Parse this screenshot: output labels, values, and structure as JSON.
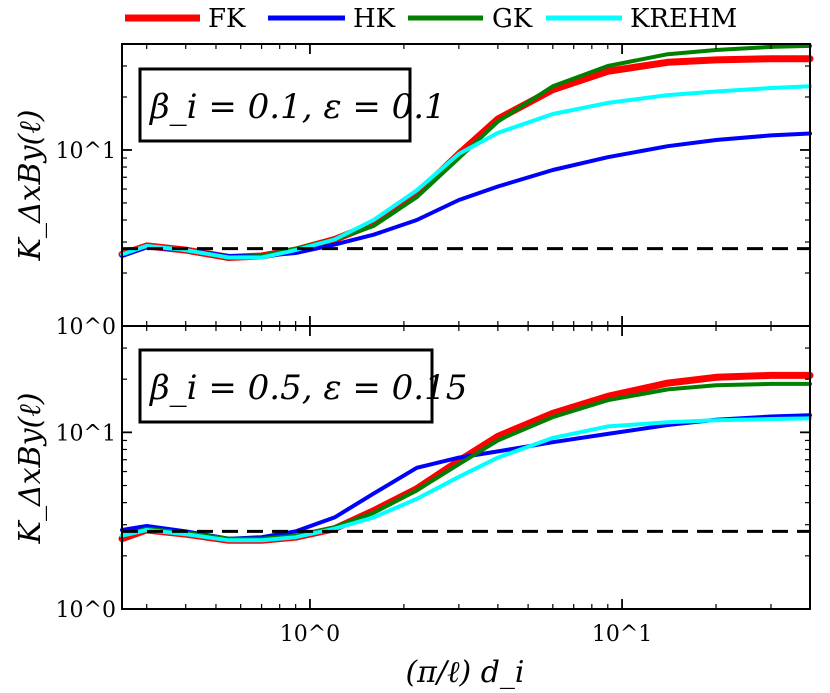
{
  "legend": [
    {
      "name": "FK",
      "color": "#ff0000"
    },
    {
      "name": "HK",
      "color": "#0000ff"
    },
    {
      "name": "GK",
      "color": "#007f00"
    },
    {
      "name": "KREHM",
      "color": "#00ffff"
    }
  ],
  "xlabel": "(π/ℓ) d_i",
  "chart_data": [
    {
      "type": "line",
      "xscale": "log",
      "yscale": "log",
      "xlim": [
        0.25,
        40
      ],
      "ylim": [
        1,
        40
      ],
      "annotation": "β_i = 0.1, ε = 0.1",
      "ylabel": "K_ΔxBy(ℓ)",
      "reference_line": {
        "y": 2.75,
        "style": "dashed"
      },
      "x_ticks": [
        {
          "value": 1,
          "label": "10^0"
        },
        {
          "value": 10,
          "label": "10^1"
        }
      ],
      "y_ticks": [
        {
          "value": 1,
          "label": "10^0"
        },
        {
          "value": 10,
          "label": "10^1"
        }
      ],
      "series": [
        {
          "name": "FK",
          "color": "#ff0000",
          "width": 7,
          "x": [
            0.25,
            0.3,
            0.4,
            0.55,
            0.7,
            0.9,
            1.2,
            1.6,
            2.2,
            3,
            4,
            6,
            9,
            14,
            20,
            30,
            40
          ],
          "y": [
            2.55,
            2.85,
            2.7,
            2.45,
            2.5,
            2.7,
            3.1,
            3.8,
            5.6,
            9.5,
            15,
            22,
            28,
            31.5,
            32.5,
            33,
            33
          ]
        },
        {
          "name": "HK",
          "color": "#0000ff",
          "width": 4,
          "x": [
            0.25,
            0.3,
            0.4,
            0.55,
            0.7,
            0.9,
            1.2,
            1.6,
            2.2,
            3,
            4,
            6,
            9,
            14,
            20,
            30,
            40
          ],
          "y": [
            2.5,
            2.8,
            2.7,
            2.5,
            2.5,
            2.6,
            2.9,
            3.3,
            4,
            5.2,
            6.2,
            7.7,
            9.1,
            10.5,
            11.4,
            12.1,
            12.4
          ]
        },
        {
          "name": "GK",
          "color": "#007f00",
          "width": 4,
          "x": [
            0.25,
            0.3,
            0.4,
            0.55,
            0.7,
            0.9,
            1.2,
            1.6,
            2.2,
            3,
            4,
            6,
            9,
            14,
            20,
            30,
            40
          ],
          "y": [
            2.55,
            2.85,
            2.7,
            2.45,
            2.5,
            2.75,
            3.1,
            3.7,
            5.4,
            9,
            14.5,
            23,
            30,
            35,
            37,
            38.5,
            39
          ]
        },
        {
          "name": "KREHM",
          "color": "#00ffff",
          "width": 4,
          "x": [
            0.25,
            0.3,
            0.4,
            0.55,
            0.7,
            0.9,
            1.2,
            1.6,
            2.2,
            3,
            4,
            6,
            9,
            14,
            20,
            30,
            40
          ],
          "y": [
            2.55,
            2.85,
            2.7,
            2.45,
            2.45,
            2.7,
            3.1,
            4,
            5.9,
            9.5,
            12.5,
            16,
            18.5,
            20.5,
            21.5,
            22.5,
            23
          ]
        }
      ]
    },
    {
      "type": "line",
      "xscale": "log",
      "yscale": "log",
      "xlim": [
        0.25,
        40
      ],
      "ylim": [
        1,
        40
      ],
      "annotation": "β_i = 0.5, ε = 0.15",
      "ylabel": "K_ΔxBy(ℓ)",
      "reference_line": {
        "y": 2.75,
        "style": "dashed"
      },
      "x_ticks": [
        {
          "value": 1,
          "label": "10^0"
        },
        {
          "value": 10,
          "label": "10^1"
        }
      ],
      "y_ticks": [
        {
          "value": 1,
          "label": "10^0"
        },
        {
          "value": 10,
          "label": "10^1"
        }
      ],
      "series": [
        {
          "name": "FK",
          "color": "#ff0000",
          "width": 7,
          "x": [
            0.25,
            0.3,
            0.4,
            0.55,
            0.7,
            0.9,
            1.2,
            1.6,
            2.2,
            3,
            4,
            6,
            9,
            14,
            20,
            30,
            40
          ],
          "y": [
            2.5,
            2.8,
            2.65,
            2.45,
            2.45,
            2.55,
            2.85,
            3.6,
            4.8,
            6.9,
            9.5,
            12.8,
            16,
            19,
            20.5,
            21,
            21
          ]
        },
        {
          "name": "HK",
          "color": "#0000ff",
          "width": 4,
          "x": [
            0.25,
            0.3,
            0.4,
            0.55,
            0.7,
            0.9,
            1.2,
            1.6,
            2.2,
            3,
            4,
            6,
            9,
            14,
            20,
            30,
            40
          ],
          "y": [
            2.8,
            2.95,
            2.75,
            2.5,
            2.55,
            2.75,
            3.3,
            4.5,
            6.3,
            7.2,
            7.8,
            8.8,
            9.8,
            11,
            11.8,
            12.3,
            12.5
          ]
        },
        {
          "name": "GK",
          "color": "#007f00",
          "width": 4,
          "x": [
            0.25,
            0.3,
            0.4,
            0.55,
            0.7,
            0.9,
            1.2,
            1.6,
            2.2,
            3,
            4,
            6,
            9,
            14,
            20,
            30,
            40
          ],
          "y": [
            2.6,
            2.85,
            2.7,
            2.5,
            2.5,
            2.6,
            2.9,
            3.5,
            4.7,
            6.6,
            9,
            12.2,
            15.2,
            17.5,
            18.5,
            18.8,
            18.8
          ]
        },
        {
          "name": "KREHM",
          "color": "#00ffff",
          "width": 4,
          "x": [
            0.25,
            0.3,
            0.4,
            0.55,
            0.7,
            0.9,
            1.2,
            1.6,
            2.2,
            3,
            4,
            6,
            9,
            14,
            20,
            30,
            40
          ],
          "y": [
            2.6,
            2.8,
            2.65,
            2.45,
            2.45,
            2.55,
            2.85,
            3.3,
            4.2,
            5.6,
            7.2,
            9.3,
            10.8,
            11.4,
            11.7,
            11.9,
            12
          ]
        }
      ]
    }
  ]
}
